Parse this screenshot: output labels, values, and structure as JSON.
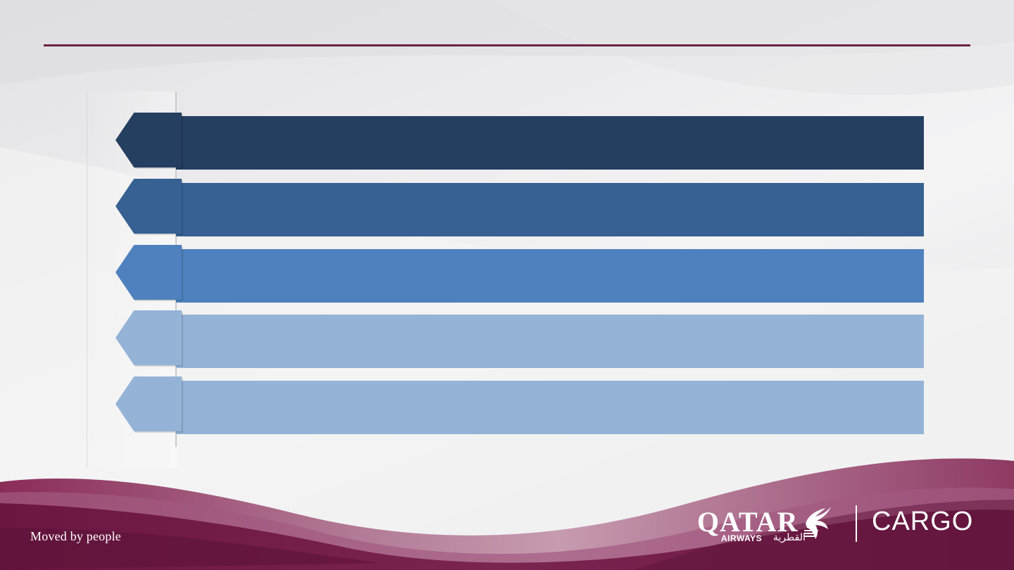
{
  "slide": {
    "tagline": "Moved by people",
    "colors": {
      "accent_rule": "#6b2144",
      "maroon_primary": "#6d1a44",
      "maroon_light": "#a4476f"
    }
  },
  "logo": {
    "brand": "QATAR",
    "sub": "AIRWAYS",
    "arabic": "القطرية",
    "product": "CARGO",
    "emblem_icon": "oryx-icon"
  },
  "rows": [
    {
      "tab_label": "",
      "bar_label": "",
      "color": "#253f61"
    },
    {
      "tab_label": "",
      "bar_label": "",
      "color": "#366192"
    },
    {
      "tab_label": "",
      "bar_label": "",
      "color": "#4e81bd"
    },
    {
      "tab_label": "",
      "bar_label": "",
      "color": "#95b3d7"
    },
    {
      "tab_label": "",
      "bar_label": "",
      "color": "#95b3d7"
    }
  ]
}
